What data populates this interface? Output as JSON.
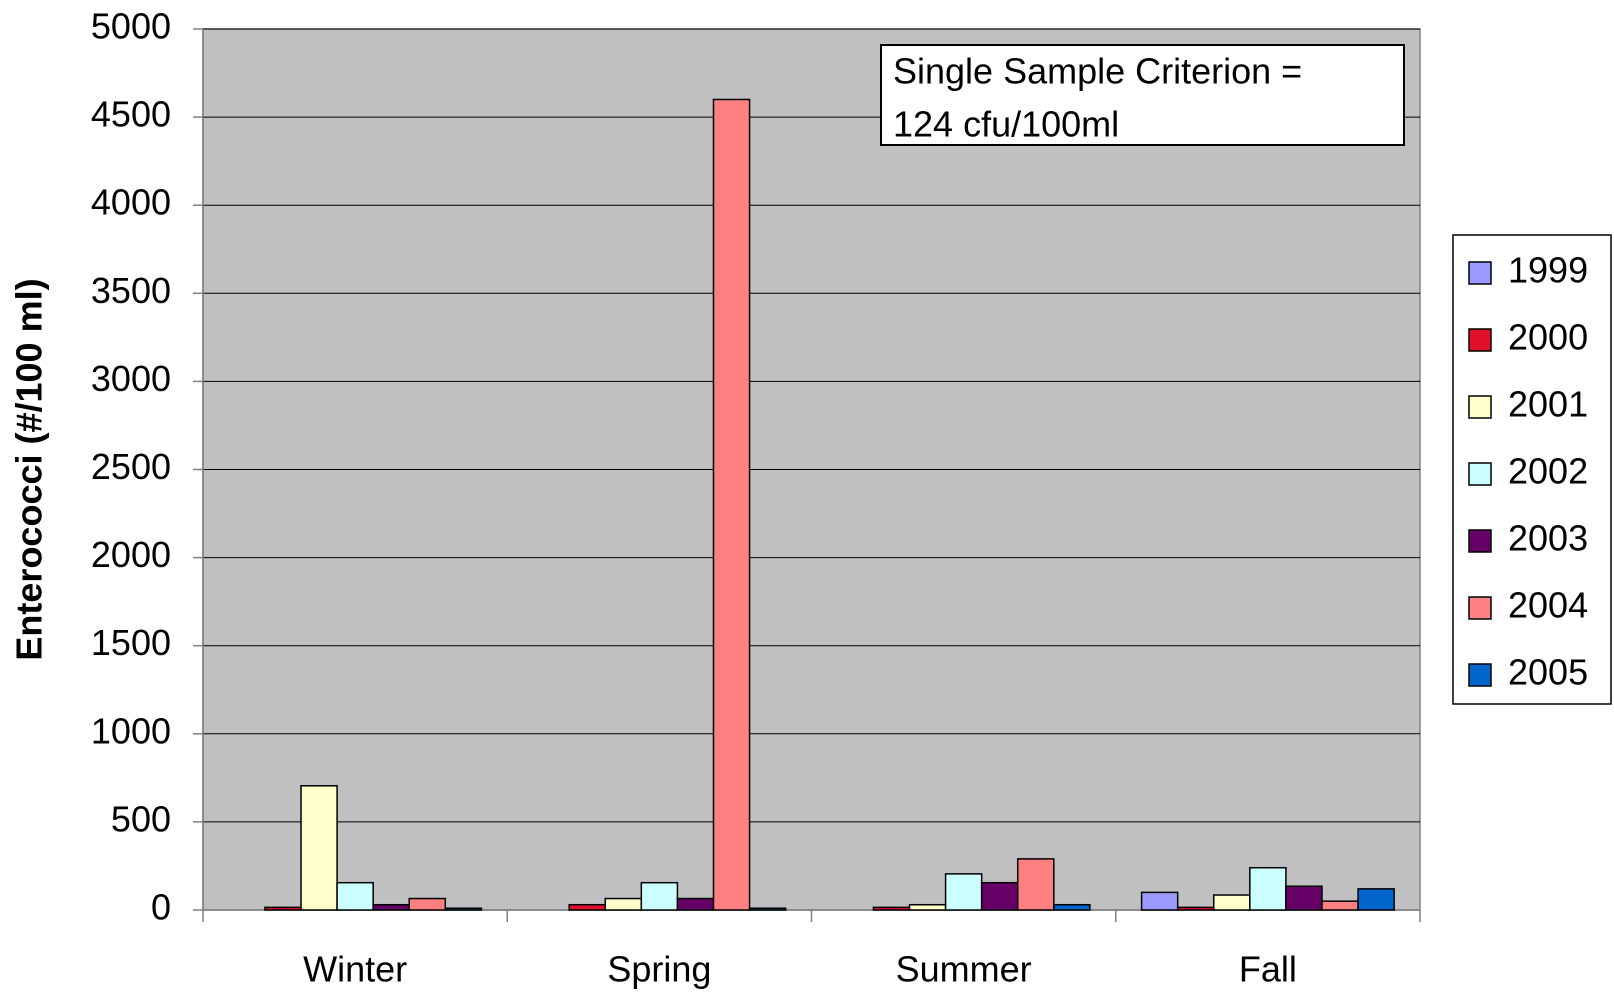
{
  "chart_data": {
    "type": "bar",
    "ylabel": "Enterococci (#/100 ml)",
    "annotation": [
      "Single Sample Criterion =",
      "124 cfu/100ml"
    ],
    "categories": [
      "Winter",
      "Spring",
      "Summer",
      "Fall"
    ],
    "series": [
      {
        "name": "1999",
        "color": "#9999ff",
        "values": [
          null,
          null,
          null,
          100
        ]
      },
      {
        "name": "2000",
        "color": "#e0102a",
        "values": [
          15,
          30,
          15,
          15
        ]
      },
      {
        "name": "2001",
        "color": "#ffffcc",
        "values": [
          705,
          65,
          30,
          85
        ]
      },
      {
        "name": "2002",
        "color": "#ccffff",
        "values": [
          155,
          155,
          205,
          240
        ]
      },
      {
        "name": "2003",
        "color": "#660066",
        "values": [
          30,
          65,
          155,
          135
        ]
      },
      {
        "name": "2004",
        "color": "#ff8080",
        "values": [
          65,
          4600,
          290,
          50
        ]
      },
      {
        "name": "2005",
        "color": "#0066cc",
        "values": [
          10,
          10,
          30,
          120
        ]
      }
    ],
    "ylim": [
      0,
      5000
    ],
    "yticks": [
      0,
      500,
      1000,
      1500,
      2000,
      2500,
      3000,
      3500,
      4000,
      4500,
      5000
    ],
    "grid": true,
    "legend": "right",
    "plot_background": "#c0c0c0"
  }
}
